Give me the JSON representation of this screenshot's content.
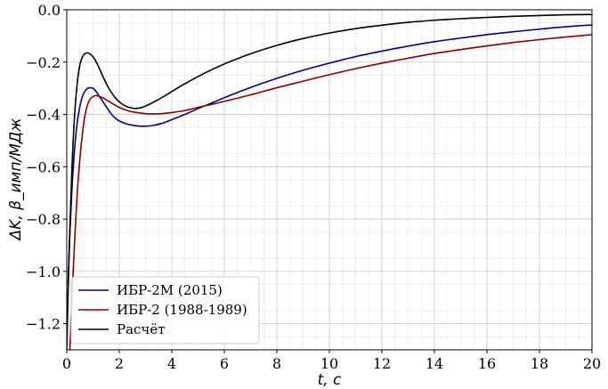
{
  "chart_data": {
    "type": "line",
    "title": "",
    "xlabel": "t, c",
    "ylabel": "ΔK, β_имп/МДж",
    "xlim": [
      0,
      20
    ],
    "ylim": [
      -1.3,
      0.0
    ],
    "xticks": [
      0,
      2,
      4,
      6,
      8,
      10,
      12,
      14,
      16,
      18,
      20
    ],
    "yticks": [
      -1.2,
      -1.0,
      -0.8,
      -0.6,
      -0.4,
      -0.2,
      0.0
    ],
    "xtick_labels": [
      "0",
      "2",
      "4",
      "6",
      "8",
      "10",
      "12",
      "14",
      "16",
      "18",
      "20"
    ],
    "ytick_labels": [
      "−1.2",
      "−1.0",
      "−0.8",
      "−0.6",
      "−0.4",
      "−0.2",
      "0.0"
    ],
    "grid": true,
    "minor_grid": true,
    "legend_position": "lower-left",
    "series": [
      {
        "name": "ИБР-2М (2015)",
        "color": "#00008b",
        "x": [
          0.05,
          0.12,
          0.2,
          0.3,
          0.4,
          0.5,
          0.6,
          0.7,
          0.8,
          0.9,
          1.0,
          1.1,
          1.2,
          1.4,
          1.6,
          1.8,
          2.0,
          2.3,
          2.6,
          3.0,
          3.3,
          3.6,
          4.0,
          4.5,
          5.0,
          5.5,
          6.0,
          7.0,
          8.0,
          9.0,
          10.0,
          11.0,
          12.0,
          13.0,
          14.0,
          15.0,
          16.0,
          17.0,
          18.0,
          19.0,
          20.0
        ],
        "y": [
          -1.05,
          -0.85,
          -0.68,
          -0.53,
          -0.43,
          -0.37,
          -0.33,
          -0.31,
          -0.3,
          -0.298,
          -0.3,
          -0.31,
          -0.325,
          -0.355,
          -0.385,
          -0.41,
          -0.425,
          -0.437,
          -0.443,
          -0.445,
          -0.442,
          -0.435,
          -0.42,
          -0.4,
          -0.378,
          -0.357,
          -0.336,
          -0.297,
          -0.262,
          -0.231,
          -0.204,
          -0.179,
          -0.158,
          -0.139,
          -0.122,
          -0.108,
          -0.095,
          -0.084,
          -0.074,
          -0.065,
          -0.058
        ]
      },
      {
        "name": "ИБР-2 (1988-1989)",
        "color": "#8b0000",
        "x": [
          0.12,
          0.2,
          0.3,
          0.4,
          0.5,
          0.6,
          0.7,
          0.8,
          0.9,
          1.0,
          1.1,
          1.2,
          1.4,
          1.6,
          1.8,
          2.0,
          2.3,
          2.6,
          3.0,
          3.3,
          3.6,
          4.0,
          4.5,
          5.0,
          5.5,
          6.0,
          7.0,
          8.0,
          9.0,
          10.0,
          11.0,
          12.0,
          13.0,
          14.0,
          15.0,
          16.0,
          17.0,
          18.0,
          19.0,
          20.0
        ],
        "y": [
          -1.3,
          -1.1,
          -0.88,
          -0.7,
          -0.57,
          -0.47,
          -0.4,
          -0.36,
          -0.34,
          -0.332,
          -0.328,
          -0.33,
          -0.338,
          -0.35,
          -0.362,
          -0.373,
          -0.385,
          -0.392,
          -0.397,
          -0.398,
          -0.397,
          -0.393,
          -0.385,
          -0.373,
          -0.362,
          -0.35,
          -0.325,
          -0.298,
          -0.273,
          -0.248,
          -0.225,
          -0.204,
          -0.185,
          -0.167,
          -0.152,
          -0.138,
          -0.125,
          -0.114,
          -0.104,
          -0.095
        ]
      },
      {
        "name": "Расчёт",
        "color": "#000000",
        "x": [
          0.0,
          0.05,
          0.1,
          0.2,
          0.3,
          0.4,
          0.5,
          0.6,
          0.7,
          0.8,
          0.9,
          1.0,
          1.1,
          1.2,
          1.4,
          1.6,
          1.8,
          2.0,
          2.2,
          2.4,
          2.6,
          2.8,
          3.0,
          3.4,
          3.8,
          4.2,
          4.6,
          5.0,
          5.5,
          6.0,
          7.0,
          8.0,
          9.0,
          10.0,
          11.0,
          12.0,
          13.0,
          14.0,
          15.0,
          16.0,
          17.0,
          18.0,
          19.0,
          20.0
        ],
        "y": [
          -1.3,
          -1.08,
          -0.9,
          -0.6,
          -0.4,
          -0.28,
          -0.21,
          -0.18,
          -0.167,
          -0.165,
          -0.17,
          -0.18,
          -0.195,
          -0.215,
          -0.26,
          -0.3,
          -0.33,
          -0.352,
          -0.366,
          -0.374,
          -0.377,
          -0.375,
          -0.368,
          -0.348,
          -0.325,
          -0.3,
          -0.277,
          -0.255,
          -0.23,
          -0.207,
          -0.168,
          -0.136,
          -0.11,
          -0.089,
          -0.072,
          -0.059,
          -0.048,
          -0.04,
          -0.034,
          -0.029,
          -0.025,
          -0.022,
          -0.019,
          -0.018
        ]
      }
    ]
  }
}
